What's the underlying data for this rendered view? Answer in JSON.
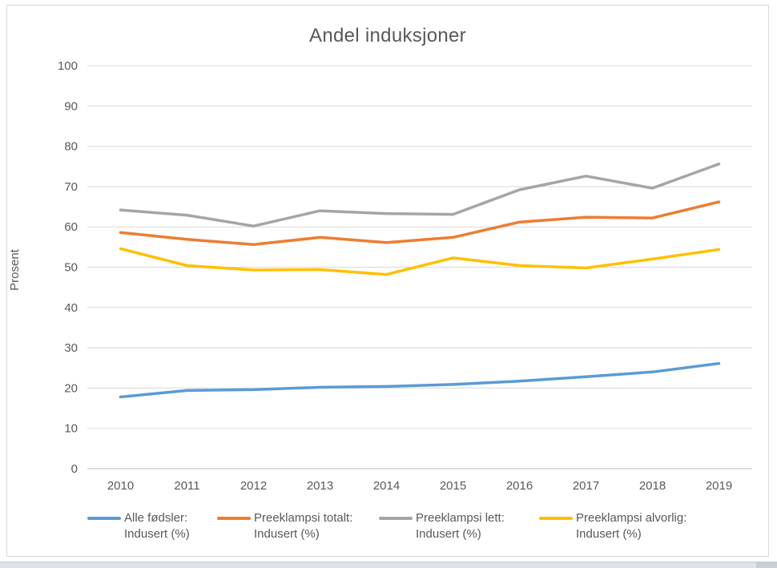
{
  "chart_data": {
    "type": "line",
    "title": "Andel induksjoner",
    "xlabel": "",
    "ylabel": "Prosent",
    "ylim": [
      0,
      100
    ],
    "yticks": [
      0,
      10,
      20,
      30,
      40,
      50,
      60,
      70,
      80,
      90,
      100
    ],
    "grid": true,
    "legend_position": "bottom",
    "categories": [
      "2010",
      "2011",
      "2012",
      "2013",
      "2014",
      "2015",
      "2016",
      "2017",
      "2018",
      "2019"
    ],
    "series": [
      {
        "name": "Alle fødsler: Indusert (%)",
        "color": "#5B9BD5",
        "values": [
          17.8,
          19.4,
          19.6,
          20.2,
          20.4,
          20.9,
          21.7,
          22.8,
          24.0,
          26.1
        ]
      },
      {
        "name": "Preeklampsi totalt: Indusert (%)",
        "color": "#ED7D31",
        "values": [
          58.6,
          56.9,
          55.6,
          57.4,
          56.1,
          57.4,
          61.2,
          62.4,
          62.2,
          66.2
        ]
      },
      {
        "name": "Preeklampsi lett: Indusert (%)",
        "color": "#A5A5A5",
        "values": [
          64.2,
          62.9,
          60.2,
          64.0,
          63.3,
          63.1,
          69.2,
          72.6,
          69.6,
          75.6
        ]
      },
      {
        "name": "Preeklampsi alvorlig: Indusert (%)",
        "color": "#FFC000",
        "values": [
          54.6,
          50.4,
          49.3,
          49.4,
          48.2,
          52.3,
          50.4,
          49.8,
          52.0,
          54.4
        ]
      }
    ],
    "legend": [
      {
        "line1": "Alle fødsler:",
        "line2": "Indusert (%)"
      },
      {
        "line1": "Preeklampsi totalt:",
        "line2": "Indusert (%)"
      },
      {
        "line1": "Preeklampsi lett:",
        "line2": "Indusert (%)"
      },
      {
        "line1": "Preeklampsi alvorlig:",
        "line2": "Indusert (%)"
      }
    ]
  },
  "colors": {
    "text": "#595959",
    "gridline": "#d9d9d9",
    "axis_line": "#bfbfbf",
    "frame_border": "#d9d9d9",
    "background": "#ffffff"
  }
}
